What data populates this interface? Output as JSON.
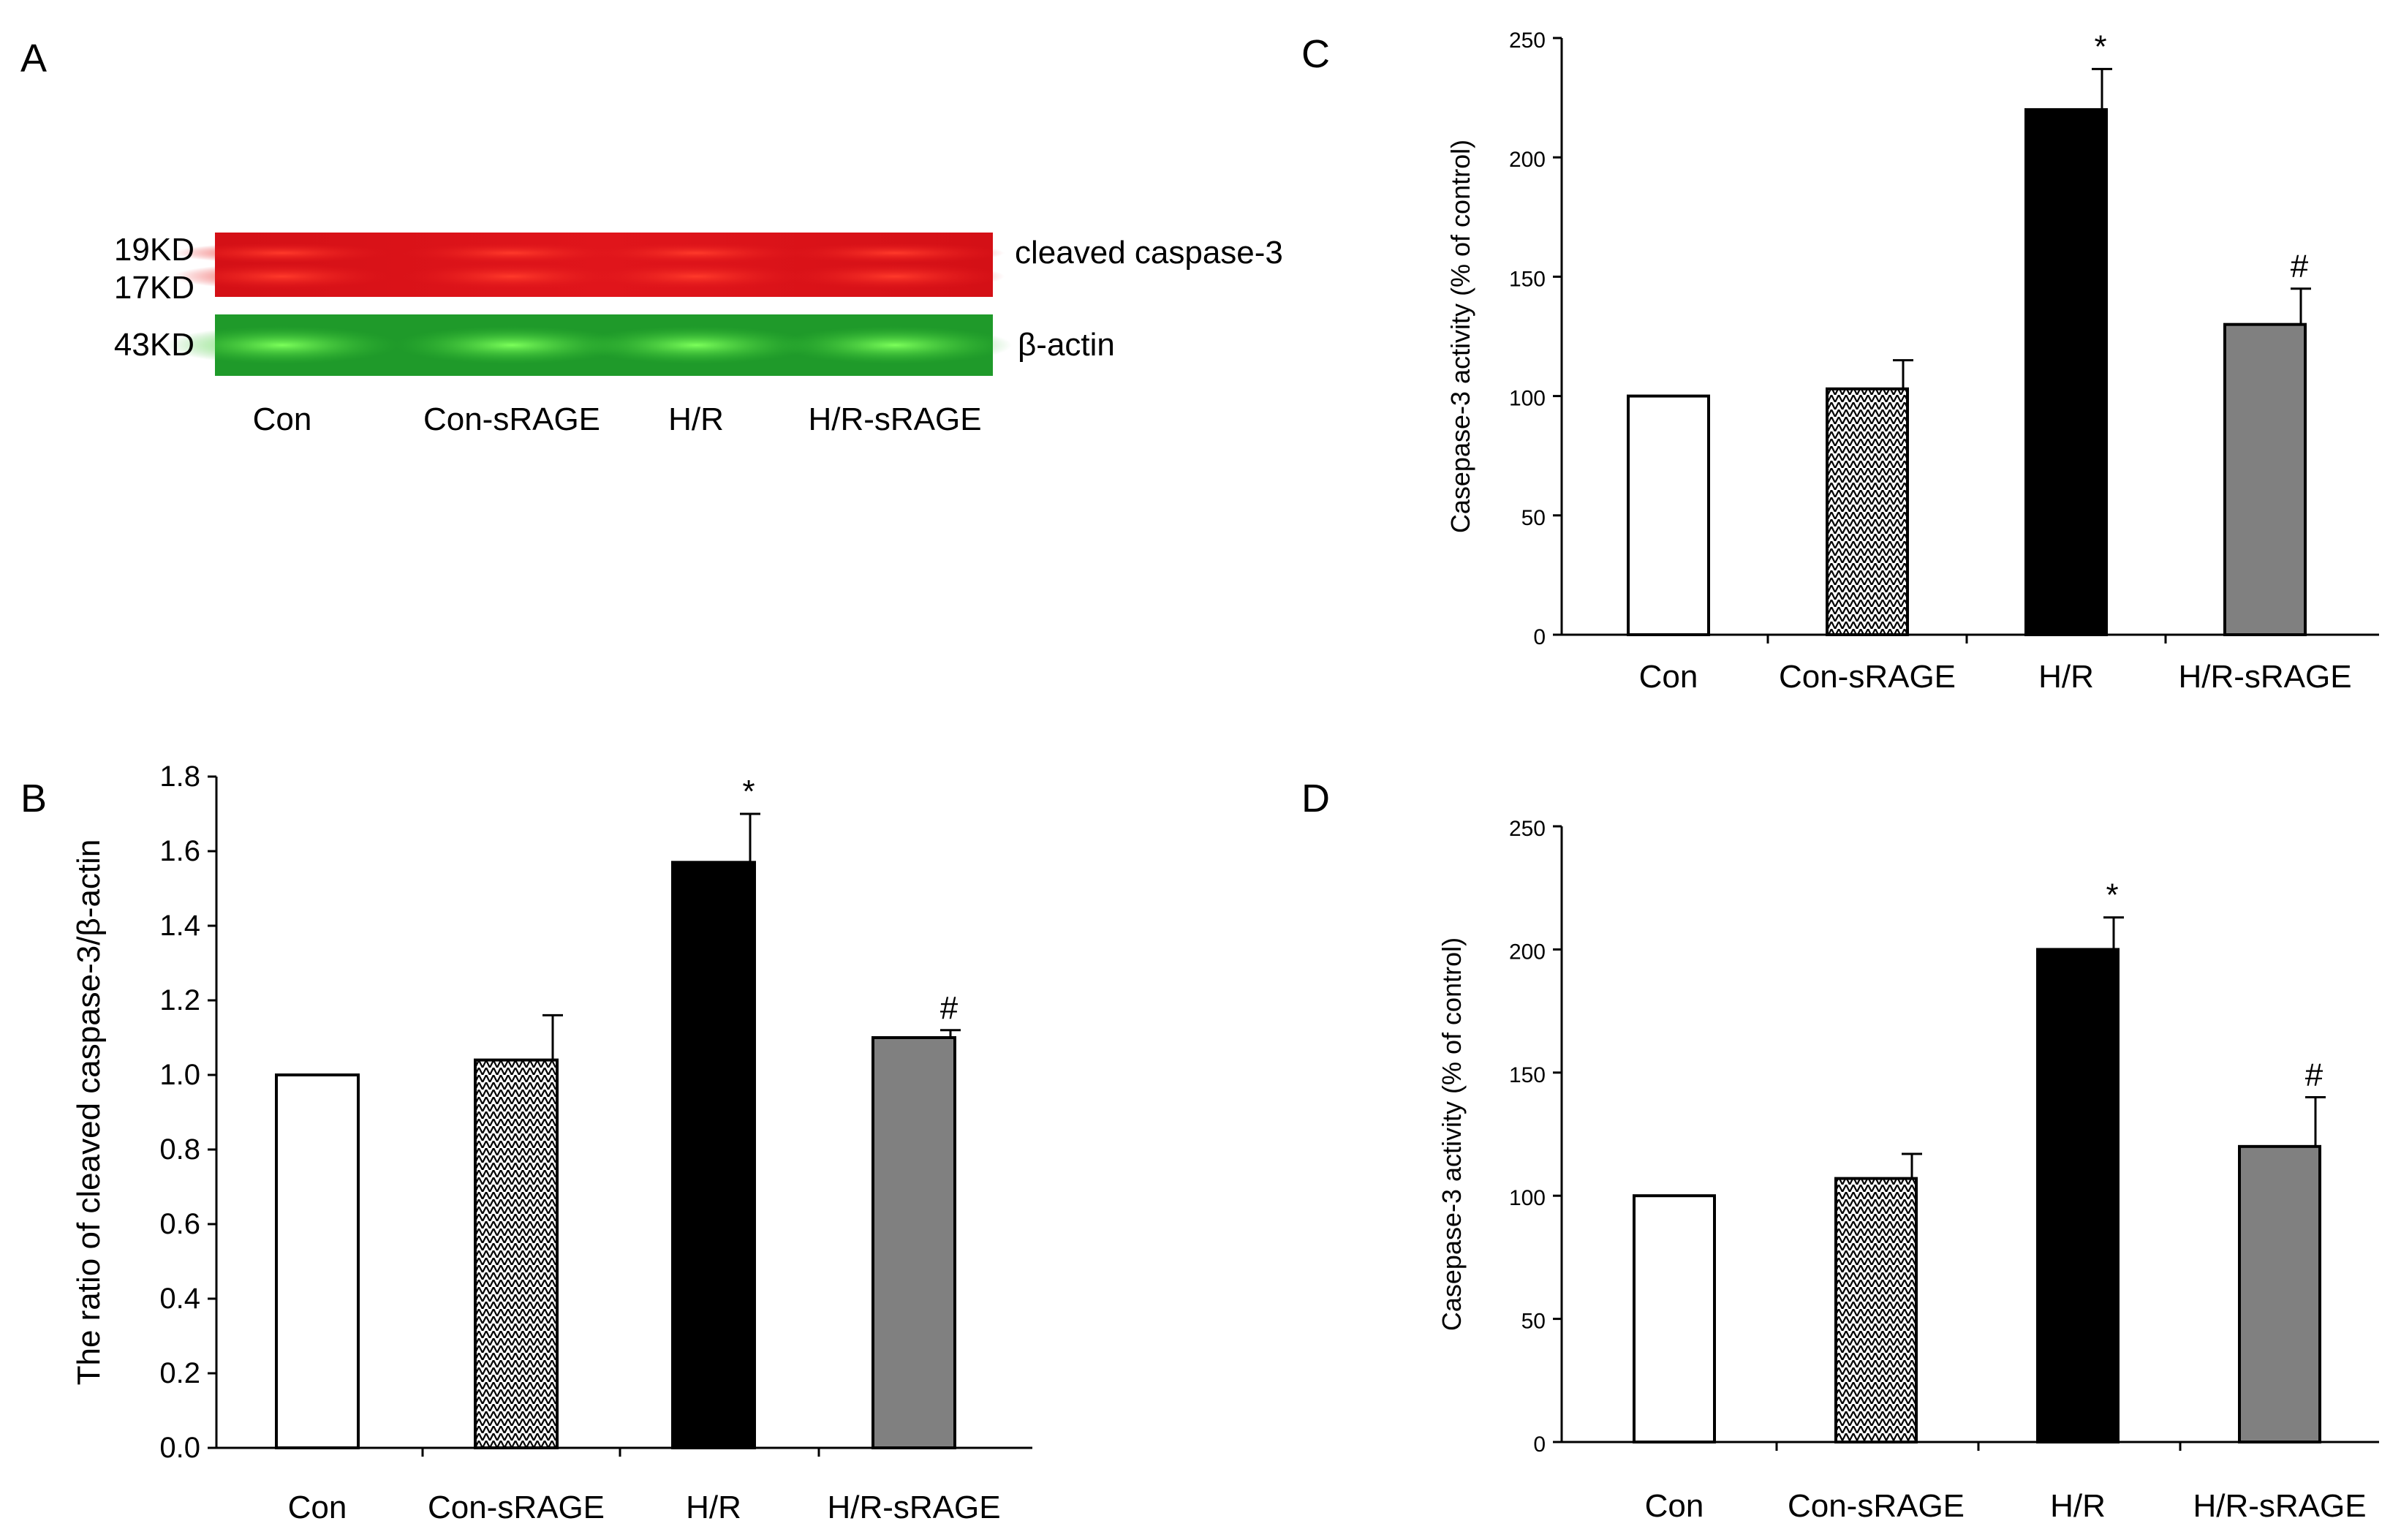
{
  "panels": {
    "A": {
      "label": "A"
    },
    "B": {
      "label": "B"
    },
    "C": {
      "label": "C"
    },
    "D": {
      "label": "D"
    }
  },
  "blot": {
    "marker_19": "19KD",
    "marker_17": "17KD",
    "marker_43": "43KD",
    "band_caspase": "cleaved caspase-3",
    "band_actin": "β-actin",
    "lanes": [
      "Con",
      "Con-sRAGE",
      "H/R",
      "H/R-sRAGE"
    ],
    "colors": {
      "red": "#e8141a",
      "green": "#2fc52f"
    }
  },
  "chart_data": [
    {
      "id": "B",
      "type": "bar",
      "categories": [
        "Con",
        "Con-sRAGE",
        "H/R",
        "H/R-sRAGE"
      ],
      "values": [
        1.0,
        1.04,
        1.57,
        1.1
      ],
      "errors": [
        0,
        0.12,
        0.13,
        0.02
      ],
      "significance": [
        "",
        "",
        "*",
        "#"
      ],
      "ylabel": "The ratio of cleaved caspase-3/β-actin",
      "ylim": [
        0,
        1.8
      ],
      "yticks": [
        "0.0",
        "0.2",
        "0.4",
        "0.6",
        "0.8",
        "1.0",
        "1.2",
        "1.4",
        "1.6",
        "1.8"
      ],
      "fills": [
        "#ffffff",
        "pattern",
        "#000000",
        "#808080"
      ]
    },
    {
      "id": "C",
      "type": "bar",
      "categories": [
        "Con",
        "Con-sRAGE",
        "H/R",
        "H/R-sRAGE"
      ],
      "values": [
        100,
        103,
        220,
        130
      ],
      "errors": [
        0,
        12,
        17,
        15
      ],
      "significance": [
        "",
        "",
        "*",
        "#"
      ],
      "ylabel": "Casepase-3 activity (% of control)",
      "ylim": [
        0,
        250
      ],
      "yticks": [
        "0",
        "50",
        "100",
        "150",
        "200",
        "250"
      ],
      "fills": [
        "#ffffff",
        "pattern",
        "#000000",
        "#808080"
      ]
    },
    {
      "id": "D",
      "type": "bar",
      "categories": [
        "Con",
        "Con-sRAGE",
        "H/R",
        "H/R-sRAGE"
      ],
      "values": [
        100,
        107,
        200,
        120
      ],
      "errors": [
        0,
        10,
        13,
        20
      ],
      "significance": [
        "",
        "",
        "*",
        "#"
      ],
      "ylabel": "Casepase-3 activity (% of control)",
      "ylim": [
        0,
        250
      ],
      "yticks": [
        "0",
        "50",
        "100",
        "150",
        "200",
        "250"
      ],
      "fills": [
        "#ffffff",
        "pattern",
        "#000000",
        "#808080"
      ]
    }
  ]
}
